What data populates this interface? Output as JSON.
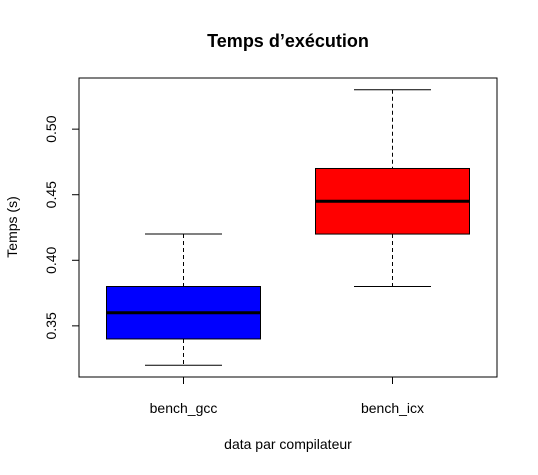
{
  "chart_data": {
    "type": "box",
    "title": "Temps d’exécution",
    "xlabel": "data par compilateur",
    "ylabel": "Temps (s)",
    "ylim": [
      0.311,
      0.539
    ],
    "yticks": [
      0.35,
      0.4,
      0.45,
      0.5
    ],
    "ytick_labels": [
      "0.35",
      "0.40",
      "0.45",
      "0.50"
    ],
    "categories": [
      "bench_gcc",
      "bench_icx"
    ],
    "boxes": [
      {
        "category": "bench_gcc",
        "min": 0.32,
        "q1": 0.34,
        "median": 0.36,
        "q3": 0.38,
        "max": 0.42,
        "color": "#0000ff"
      },
      {
        "category": "bench_icx",
        "min": 0.38,
        "q1": 0.42,
        "median": 0.445,
        "q3": 0.47,
        "max": 0.53,
        "color": "#ff0000"
      }
    ],
    "grid": false,
    "legend": "none"
  }
}
